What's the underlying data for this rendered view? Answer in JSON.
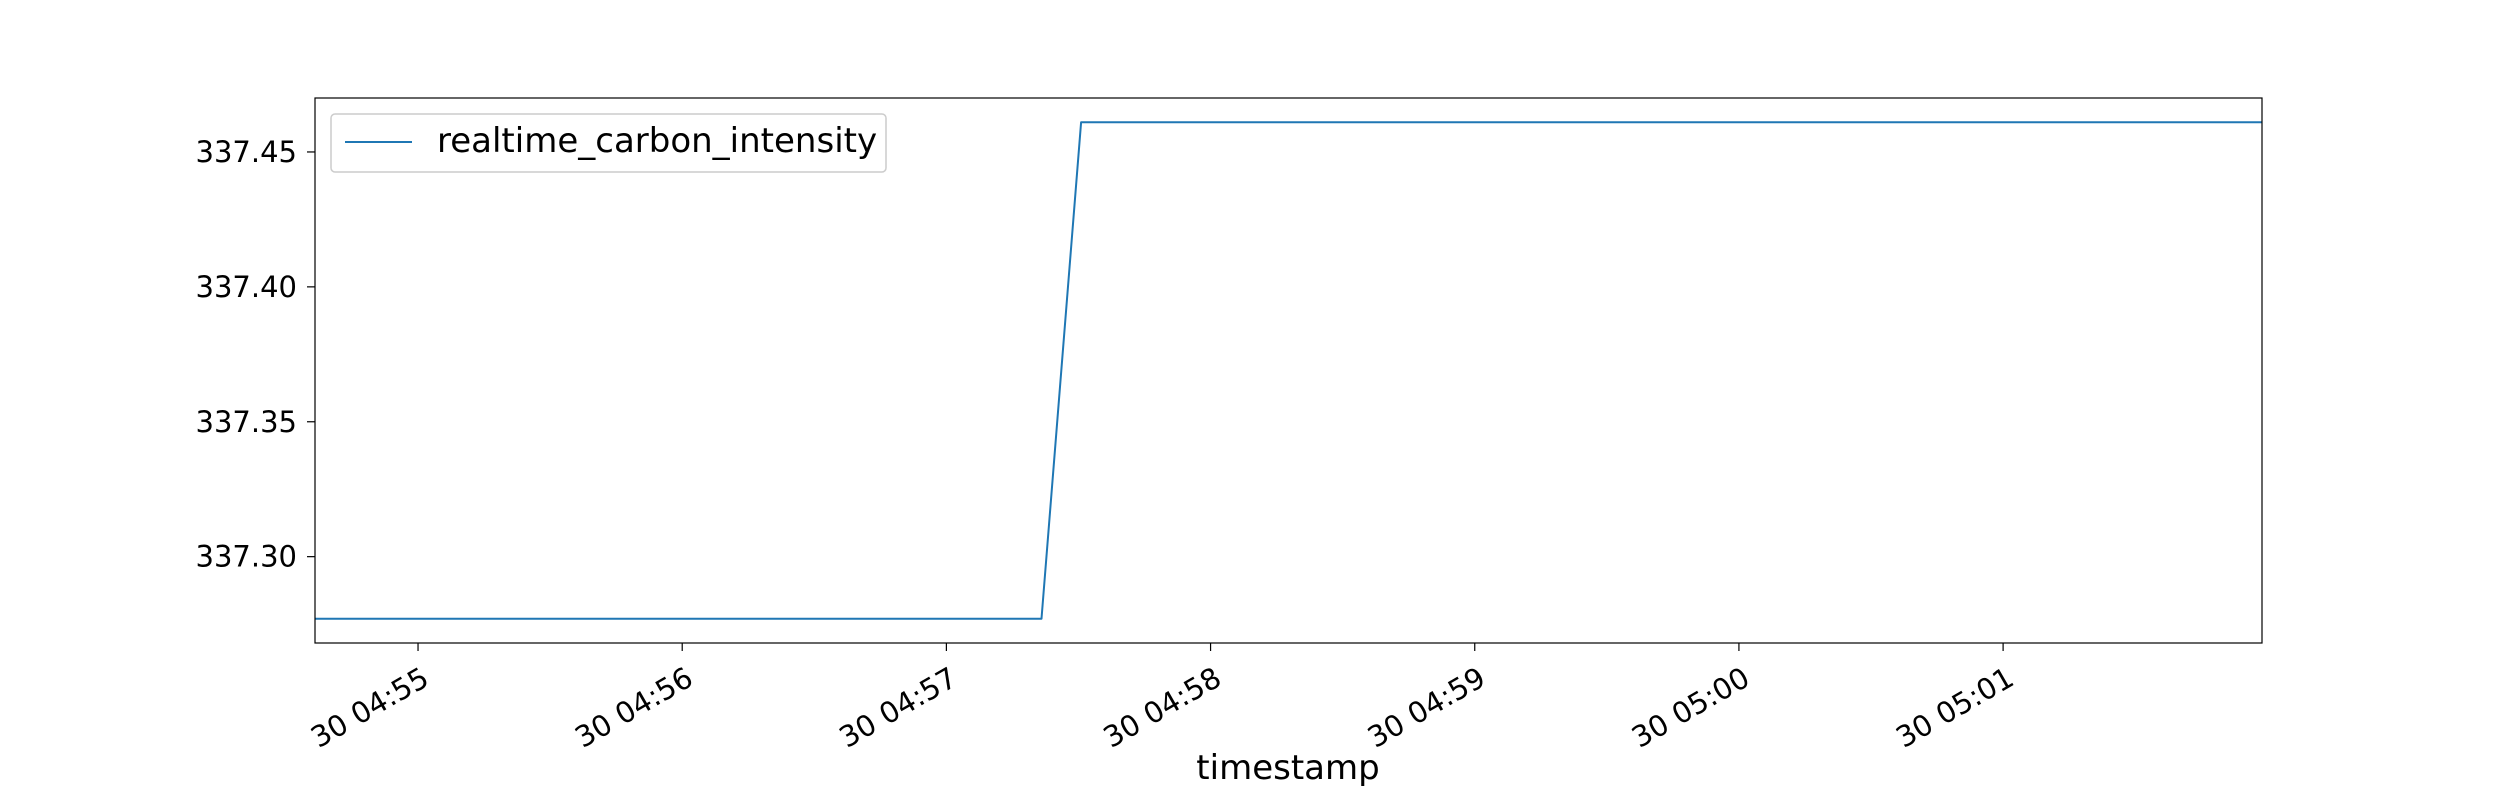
{
  "chart_data": {
    "type": "line",
    "title": "",
    "xlabel": "timestamp",
    "ylabel": "",
    "grid": false,
    "legend_position": "top-left",
    "x_axis": {
      "unit": "minutes since 04:54",
      "range": [
        0.61,
        7.98
      ],
      "ticks": [
        {
          "value": 1,
          "label": "30 04:55"
        },
        {
          "value": 2,
          "label": "30 04:56"
        },
        {
          "value": 3,
          "label": "30 04:57"
        },
        {
          "value": 4,
          "label": "30 04:58"
        },
        {
          "value": 5,
          "label": "30 04:59"
        },
        {
          "value": 6,
          "label": "30 05:00"
        },
        {
          "value": 7,
          "label": "30 05:01"
        }
      ]
    },
    "y_axis": {
      "range": [
        337.268,
        337.47
      ],
      "ticks": [
        {
          "value": 337.3,
          "label": "337.30"
        },
        {
          "value": 337.35,
          "label": "337.35"
        },
        {
          "value": 337.4,
          "label": "337.40"
        },
        {
          "value": 337.45,
          "label": "337.45"
        }
      ]
    },
    "series": [
      {
        "name": "realtime_carbon_intensity",
        "color": "#1f77b4",
        "points": [
          {
            "x": 0.61,
            "y": 337.277
          },
          {
            "x": 3.36,
            "y": 337.277
          },
          {
            "x": 3.51,
            "y": 337.461
          },
          {
            "x": 7.98,
            "y": 337.461
          }
        ]
      }
    ]
  }
}
